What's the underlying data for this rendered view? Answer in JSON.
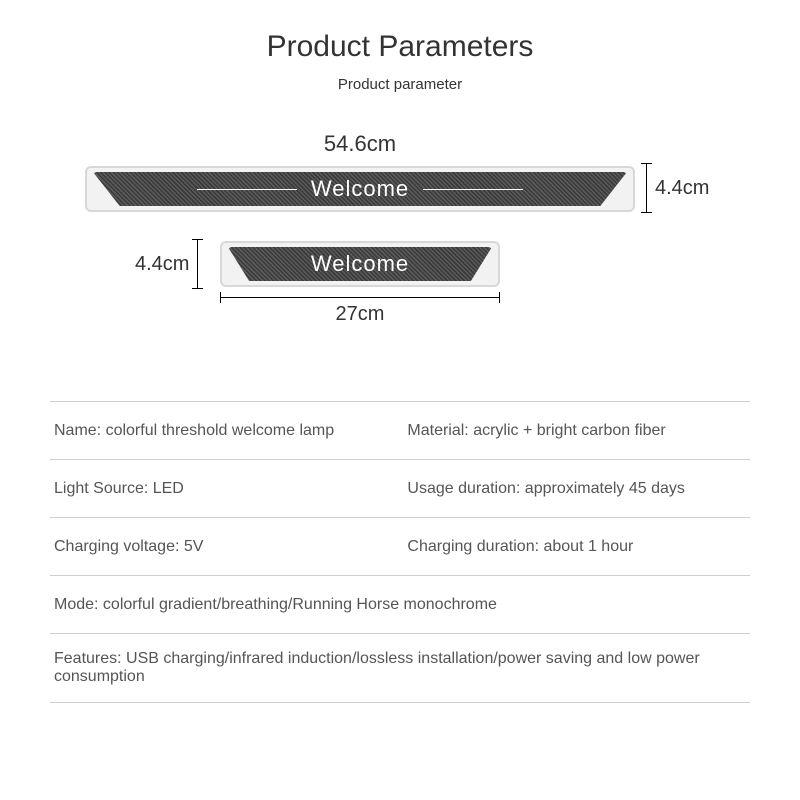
{
  "title": "Product Parameters",
  "subtitle": "Product parameter",
  "diagram": {
    "large": {
      "width_label": "54.6cm",
      "height_label": "4.4cm",
      "text": "Welcome"
    },
    "small": {
      "width_label": "27cm",
      "height_label": "4.4cm",
      "text": "Welcome"
    },
    "colors": {
      "plate_border": "#d8d8d8",
      "plate_bg": "#f2f2f2",
      "carbon_dark": "#3a3a3a",
      "carbon_light": "#5a5a5a",
      "text_on_plate": "#ffffff",
      "dim_line": "#000000"
    }
  },
  "specs": {
    "rows": [
      {
        "left": "Name: colorful threshold welcome lamp",
        "right": "Material: acrylic + bright carbon fiber"
      },
      {
        "left": "Light Source: LED",
        "right": "Usage duration: approximately 45 days"
      },
      {
        "left": "Charging voltage: 5V",
        "right": "Charging duration: about 1 hour"
      },
      {
        "full": "Mode: colorful gradient/breathing/Running Horse monochrome"
      },
      {
        "full": "Features: USB charging/infrared induction/lossless installation/power saving and low power consumption"
      }
    ],
    "border_color": "#cfcfcf",
    "text_color": "#555555",
    "fontsize": 16
  },
  "layout": {
    "page_bg": "#ffffff",
    "title_fontsize": 30,
    "subtitle_fontsize": 15,
    "dim_fontsize": 20,
    "plate_label_fontsize": 22
  }
}
